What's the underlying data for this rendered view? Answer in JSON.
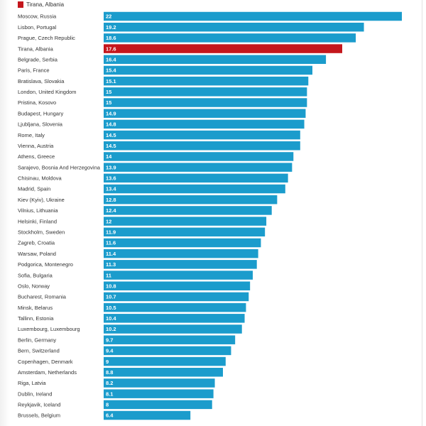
{
  "chart_data": {
    "type": "bar",
    "orientation": "horizontal",
    "title": "",
    "xlabel": "",
    "ylabel": "",
    "xlim": [
      0,
      22
    ],
    "grid": false,
    "legend": {
      "placement": "top-left",
      "entries": [
        {
          "label": "Tirana, Albania",
          "color": "#c4161c"
        }
      ]
    },
    "default_color": "#1b9ccc",
    "highlight_color": "#c4161c",
    "highlight_category": "Tirana, Albania",
    "categories": [
      "Moscow, Russia",
      "Lisbon, Portugal",
      "Prague, Czech Republic",
      "Tirana, Albania",
      "Belgrade, Serbia",
      "Paris, France",
      "Bratislava, Slovakia",
      "London, United Kingdom",
      "Pristina, Kosovo",
      "Budapest, Hungary",
      "Ljubljana, Slovenia",
      "Rome, Italy",
      "Vienna, Austria",
      "Athens, Greece",
      "Sarajevo, Bosnia And Herzegovina",
      "Chisinau, Moldova",
      "Madrid, Spain",
      "Kiev (Kyiv), Ukraine",
      "Vilnius, Lithuania",
      "Helsinki, Finland",
      "Stockholm, Sweden",
      "Zagreb, Croatia",
      "Warsaw, Poland",
      "Podgorica, Montenegro",
      "Sofia, Bulgaria",
      "Oslo, Norway",
      "Bucharest, Romania",
      "Minsk, Belarus",
      "Tallinn, Estonia",
      "Luxembourg, Luxembourg",
      "Berlin, Germany",
      "Bern, Switzerland",
      "Copenhagen, Denmark",
      "Amsterdam, Netherlands",
      "Riga, Latvia",
      "Dublin, Ireland",
      "Reykjavik, Iceland",
      "Brussels, Belgium"
    ],
    "values": [
      22,
      19.2,
      18.6,
      17.6,
      16.4,
      15.4,
      15.1,
      15,
      15,
      14.9,
      14.8,
      14.5,
      14.5,
      14,
      13.9,
      13.6,
      13.4,
      12.8,
      12.4,
      12,
      11.9,
      11.6,
      11.4,
      11.3,
      11,
      10.8,
      10.7,
      10.5,
      10.4,
      10.2,
      9.7,
      9.4,
      9,
      8.8,
      8.2,
      8.1,
      8,
      6.4
    ]
  }
}
